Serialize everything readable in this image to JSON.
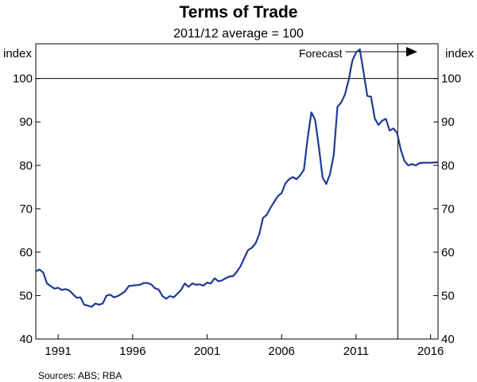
{
  "chart_data": {
    "type": "line",
    "title": "Terms of Trade",
    "subtitle": "2011/12 average = 100",
    "y_unit_left": "index",
    "y_unit_right": "index",
    "ylim": [
      40,
      108
    ],
    "yticks": [
      40,
      50,
      60,
      70,
      80,
      90,
      100
    ],
    "ytick_labels": [
      "40",
      "50",
      "60",
      "70",
      "80",
      "90",
      "100"
    ],
    "xlim": [
      1989.5,
      2016.5
    ],
    "xtick_labels": [
      "1991",
      "1996",
      "2001",
      "2006",
      "2011",
      "2016"
    ],
    "xticks_positions": [
      1991,
      1996,
      2001,
      2006,
      2011,
      2016
    ],
    "reference_line_y": 100,
    "forecast_start": 2013.8,
    "annotation": "Forecast",
    "source": "Sources:   ABS; RBA",
    "line_color": "#1f3a93",
    "series": [
      {
        "x": [
          1989.5,
          1989.75,
          1990.0,
          1990.25,
          1990.5,
          1990.75,
          1991.0,
          1991.25,
          1991.5,
          1991.75,
          1992.0,
          1992.25,
          1992.5,
          1992.75,
          1993.0,
          1993.25,
          1993.5,
          1993.75,
          1994.0,
          1994.25,
          1994.5,
          1994.75,
          1995.0,
          1995.25,
          1995.5,
          1995.75,
          1996.0,
          1996.25,
          1996.5,
          1996.75,
          1997.0,
          1997.25,
          1997.5,
          1997.75,
          1998.0,
          1998.25,
          1998.5,
          1998.75,
          1999.0,
          1999.25,
          1999.5,
          1999.75,
          2000.0,
          2000.25,
          2000.5,
          2000.75,
          2001.0,
          2001.25,
          2001.5,
          2001.75,
          2002.0,
          2002.25,
          2002.5,
          2002.75,
          2003.0,
          2003.25,
          2003.5,
          2003.75,
          2004.0,
          2004.25,
          2004.5,
          2004.75,
          2005.0,
          2005.25,
          2005.5,
          2005.75,
          2006.0,
          2006.25,
          2006.5,
          2006.75,
          2007.0,
          2007.25,
          2007.5,
          2007.75,
          2008.0,
          2008.25,
          2008.5,
          2008.75,
          2009.0,
          2009.25,
          2009.5,
          2009.75,
          2010.0,
          2010.25,
          2010.5,
          2010.75,
          2011.0,
          2011.25,
          2011.5,
          2011.75,
          2012.0,
          2012.25,
          2012.5,
          2012.75,
          2013.0,
          2013.25,
          2013.5,
          2013.75,
          2014.0,
          2014.25,
          2014.5,
          2014.75,
          2015.0,
          2015.25,
          2015.5,
          2015.75,
          2016.0,
          2016.5
        ],
        "y": [
          55.6,
          56.0,
          55.3,
          52.8,
          52.2,
          51.6,
          51.8,
          51.3,
          51.5,
          51.2,
          50.3,
          49.5,
          49.6,
          47.9,
          47.7,
          47.4,
          48.2,
          47.9,
          48.2,
          50.0,
          50.2,
          49.6,
          49.9,
          50.4,
          51.0,
          52.2,
          52.3,
          52.4,
          52.5,
          52.9,
          52.9,
          52.6,
          51.7,
          51.4,
          49.9,
          49.3,
          49.9,
          49.6,
          50.4,
          51.3,
          52.8,
          52.0,
          52.8,
          52.5,
          52.6,
          52.3,
          53.0,
          52.8,
          54.0,
          53.3,
          53.5,
          54.0,
          54.4,
          54.5,
          55.5,
          56.8,
          58.7,
          60.5,
          61.0,
          62.0,
          64.1,
          67.9,
          68.6,
          70.2,
          71.6,
          72.9,
          73.6,
          75.8,
          76.8,
          77.3,
          76.8,
          77.7,
          79.0,
          86.3,
          92.2,
          90.5,
          84.2,
          77.2,
          75.7,
          78.0,
          82.4,
          93.5,
          94.5,
          96.3,
          99.7,
          104.1,
          106.0,
          106.7,
          101.5,
          96.0,
          95.8,
          90.8,
          89.3,
          90.3,
          90.7,
          88.0,
          88.5,
          87.5,
          83.6,
          81.0,
          80.0,
          80.3,
          80.0,
          80.5,
          80.6,
          80.6,
          80.6,
          80.7
        ]
      }
    ]
  }
}
